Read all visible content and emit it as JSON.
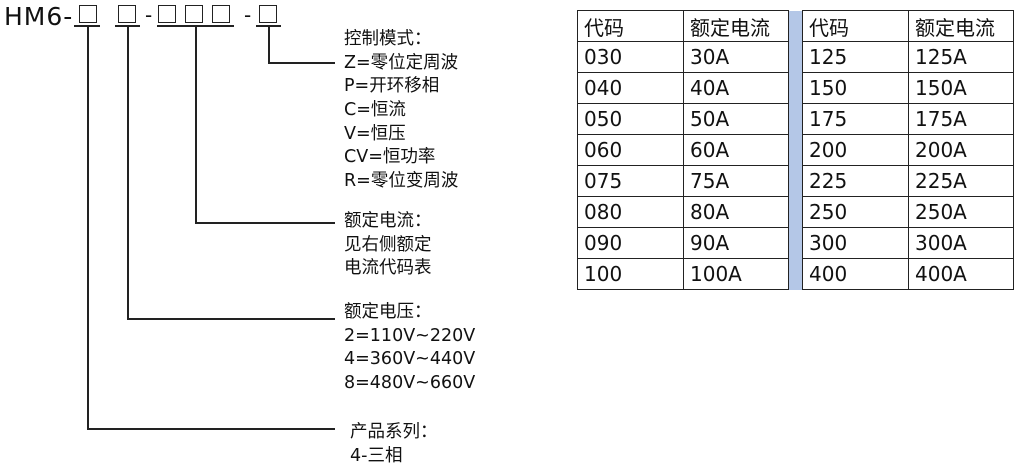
{
  "model_prefix": "HM6-",
  "separator": "-",
  "control_mode": {
    "title": "控制模式：",
    "options": [
      "Z=零位定周波",
      "P=开环移相",
      "C=恒流",
      "V=恒压",
      "CV=恒功率",
      "R=零位变周波"
    ]
  },
  "rated_current": {
    "title": "额定电流：",
    "lines": [
      "见右侧额定",
      "电流代码表"
    ]
  },
  "rated_voltage": {
    "title": "额定电压：",
    "options": [
      "2=110V~220V",
      "4=360V~440V",
      "8=480V~660V"
    ]
  },
  "product_series": {
    "title": "产品系列：",
    "options": [
      "4-三相"
    ]
  },
  "current_table": {
    "headers": [
      "代码",
      "额定电流",
      "代码",
      "额定电流"
    ],
    "rows": [
      [
        "030",
        "30A",
        "125",
        "125A"
      ],
      [
        "040",
        "40A",
        "150",
        "150A"
      ],
      [
        "050",
        "50A",
        "175",
        "175A"
      ],
      [
        "060",
        "60A",
        "200",
        "200A"
      ],
      [
        "075",
        "75A",
        "225",
        "225A"
      ],
      [
        "080",
        "80A",
        "250",
        "250A"
      ],
      [
        "090",
        "90A",
        "300",
        "300A"
      ],
      [
        "100",
        "100A",
        "400",
        "400A"
      ]
    ],
    "separator_color": "#b4c7e7"
  }
}
